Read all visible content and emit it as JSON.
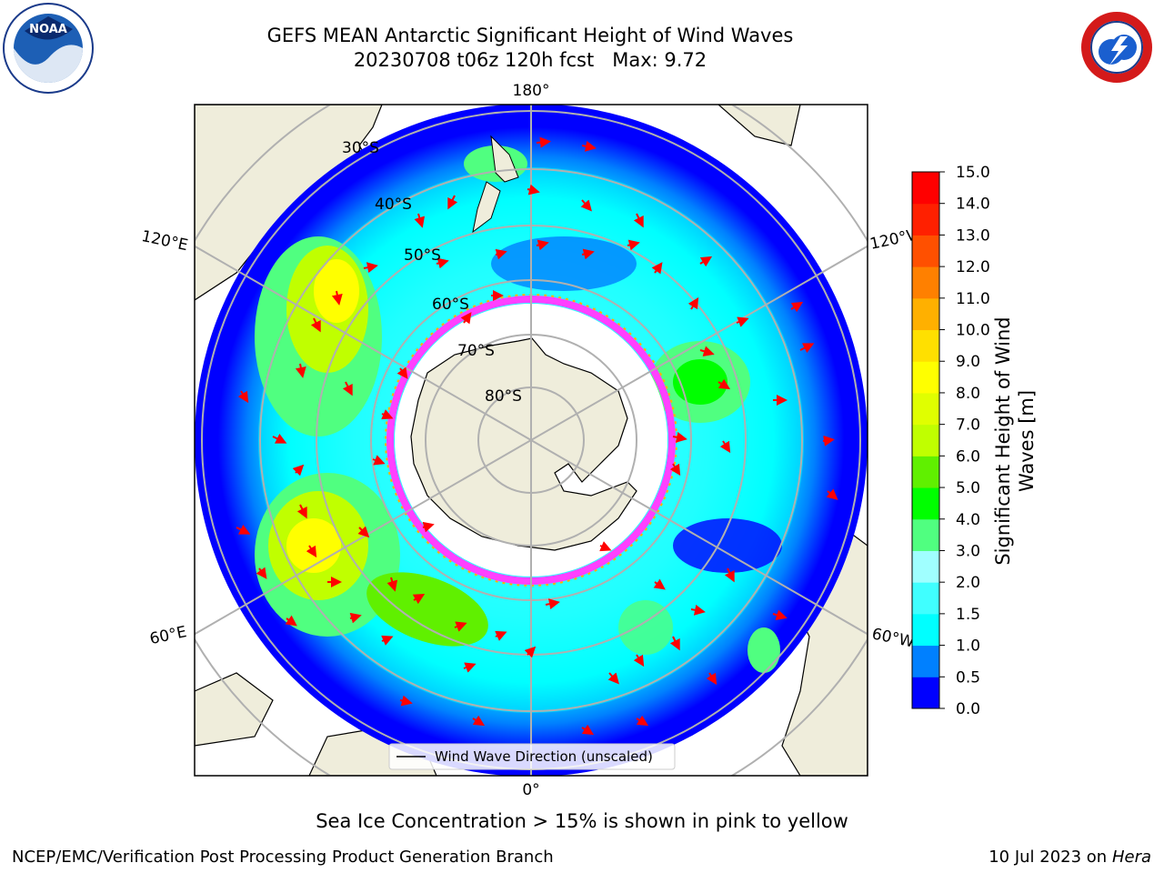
{
  "title": {
    "line1": "GEFS MEAN Antarctic Significant Height of Wind Waves",
    "line2": "20230708 t06z 120h fcst   Max: 9.72"
  },
  "map": {
    "projection": "south-polar-stereographic",
    "lon_labels": {
      "top": "180°",
      "bottom": "0°",
      "left_upper": "120°E",
      "left_lower": "60°E",
      "right_upper": "120°W",
      "right_lower": "60°W"
    },
    "lat_labels": [
      "30°S",
      "40°S",
      "50°S",
      "60°S",
      "70°S",
      "80°S"
    ],
    "legend": "Wind Wave Direction (unscaled)",
    "ocean_color": "#0000ff",
    "land_color": "#efeddb",
    "arrow_color": "#ff0000"
  },
  "colorbar": {
    "label_line1": "Significant Height of Wind",
    "label_line2": "Waves [m]",
    "ticks": [
      "0.0",
      "0.5",
      "1.0",
      "1.5",
      "2.0",
      "3.0",
      "4.0",
      "5.0",
      "6.0",
      "7.0",
      "8.0",
      "9.0",
      "10.0",
      "11.0",
      "12.0",
      "13.0",
      "14.0",
      "15.0"
    ],
    "colors": [
      "#0000ff",
      "#0080ff",
      "#00ffff",
      "#40ffff",
      "#a0ffff",
      "#50ff80",
      "#00ff00",
      "#60f000",
      "#c0ff00",
      "#e0ff00",
      "#ffff00",
      "#ffe000",
      "#ffb000",
      "#ff8000",
      "#ff5000",
      "#ff2000",
      "#ff0000"
    ]
  },
  "caption": "Sea Ice Concentration > 15% is shown in pink to yellow",
  "footer": {
    "credit": "NCEP/EMC/Verification Post Processing Product Generation Branch",
    "date": "10 Jul 2023 on ",
    "machine": "Hera"
  },
  "logos": {
    "left": "NOAA",
    "right": "NATIONAL WEATHER SERVICE"
  }
}
